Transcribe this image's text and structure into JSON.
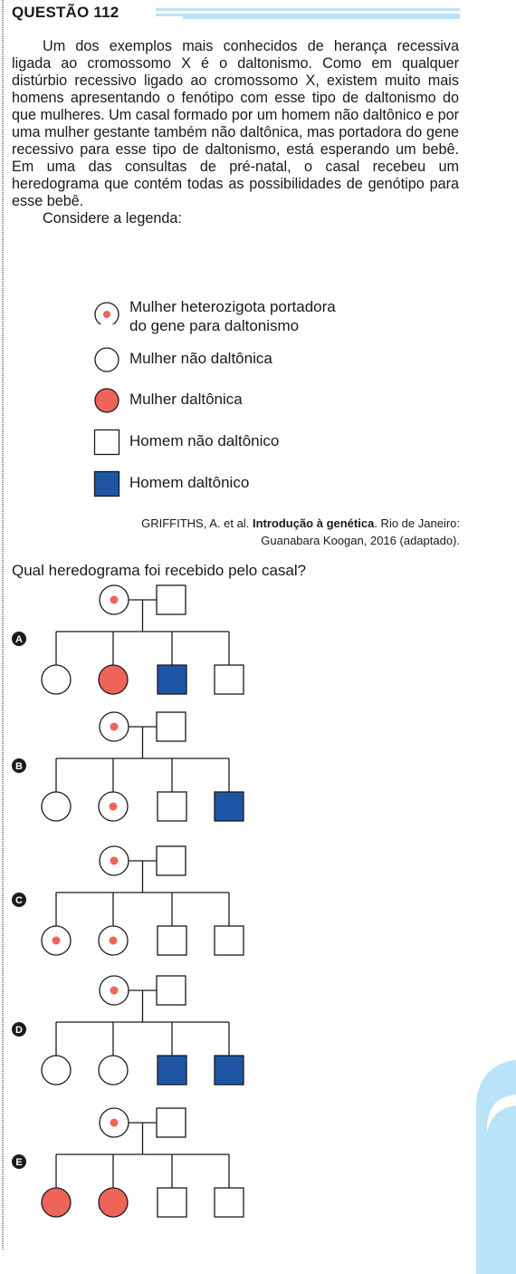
{
  "question": {
    "title": "QUESTÃO 112",
    "paragraph": "Um dos exemplos mais conhecidos de herança recessiva ligada ao cromossomo X é o daltonismo. Como em qualquer distúrbio recessivo ligado ao cromossomo X, existem muito mais homens apresentando o fenótipo com esse tipo de daltonismo do que mulheres. Um casal formado por um homem não daltônico e por uma mulher gestante também não daltônica, mas portadora do gene recessivo para esse tipo de daltonismo, está esperando um bebê. Em uma das consultas de pré-natal, o casal recebeu um heredograma que contém todas as possibilidades de genótipo para esse bebê.",
    "legend_intro": "Considere a legenda:",
    "prompt": "Qual heredograma foi recebido pelo casal?"
  },
  "legend": [
    {
      "symbol": "carrier-female",
      "label_line1": "Mulher heterozigota portadora",
      "label_line2": "do gene para daltonismo"
    },
    {
      "symbol": "normal-female",
      "label_line1": "Mulher não daltônica"
    },
    {
      "symbol": "affected-female",
      "label_line1": "Mulher daltônica"
    },
    {
      "symbol": "normal-male",
      "label_line1": "Homem não daltônico"
    },
    {
      "symbol": "affected-male",
      "label_line1": "Homem daltônico"
    }
  ],
  "citation": {
    "author": "GRIFFITHS, A. et al.",
    "title": "Introdução à genética",
    "rest_line1": ". Rio de Janeiro:",
    "line2": "Guanabara Koogan, 2016 (adaptado)."
  },
  "options": [
    {
      "letter": "A",
      "children": [
        "normal-female",
        "affected-female",
        "affected-male",
        "normal-male"
      ]
    },
    {
      "letter": "B",
      "children": [
        "normal-female",
        "carrier-female",
        "normal-male",
        "affected-male"
      ]
    },
    {
      "letter": "C",
      "children": [
        "carrier-female",
        "carrier-female",
        "normal-male",
        "normal-male"
      ]
    },
    {
      "letter": "D",
      "children": [
        "normal-female",
        "normal-female",
        "affected-male",
        "affected-male"
      ]
    },
    {
      "letter": "E",
      "children": [
        "affected-female",
        "affected-female",
        "normal-male",
        "normal-male"
      ]
    }
  ],
  "colors": {
    "affected_female": "#ef6459",
    "affected_male": "#1f55a5",
    "carrier_dot": "#ef6459",
    "accent_bar": "#b9e3f8",
    "stroke": "#1a1a1a"
  }
}
